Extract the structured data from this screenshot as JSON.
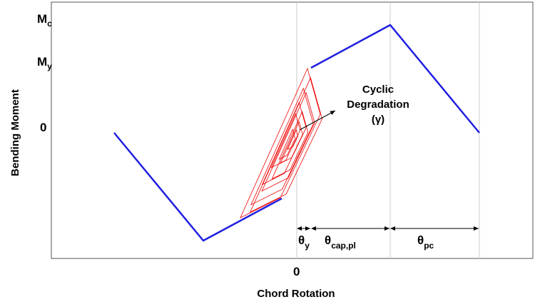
{
  "y_axis": {
    "title": "Bending Moment",
    "ticks": [
      {
        "symbol": "M",
        "subscript": "c"
      },
      {
        "symbol": "M",
        "subscript": "y"
      },
      {
        "symbol": "0"
      }
    ]
  },
  "x_axis": {
    "title": "Chord Rotation",
    "tick": "0"
  },
  "annotation": {
    "lines": [
      "Cyclic",
      "Degradation",
      "(γ)"
    ]
  },
  "dimensions": [
    {
      "symbol": "θ",
      "subscript": "y"
    },
    {
      "symbol": "θ",
      "subscript": "cap,pl"
    },
    {
      "symbol": "θ",
      "subscript": "pc"
    }
  ]
}
